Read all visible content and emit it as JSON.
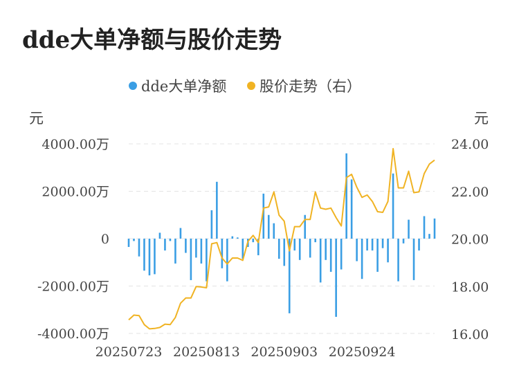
{
  "page_title": "dde大单净额与股价走势",
  "chart_data": {
    "type": "bar+line",
    "title": "dde大单净额与股价走势",
    "left_unit": "元",
    "right_unit": "元",
    "legend": [
      {
        "name": "dde大单净额",
        "color": "#3a9ee4"
      },
      {
        "name": "股价走势（右）",
        "color": "#f0b323"
      }
    ],
    "y_left": {
      "min": -4000,
      "max": 4000,
      "ticks": [
        {
          "value": 4000,
          "label": "4000.00万"
        },
        {
          "value": 2000,
          "label": "2000.00万"
        },
        {
          "value": 0,
          "label": "0"
        },
        {
          "value": -2000,
          "label": "-2000.00万"
        },
        {
          "value": -4000,
          "label": "-4000.00万"
        }
      ]
    },
    "y_right": {
      "min": 16,
      "max": 24,
      "ticks": [
        {
          "value": 24,
          "label": "24.00"
        },
        {
          "value": 22,
          "label": "22.00"
        },
        {
          "value": 20,
          "label": "20.00"
        },
        {
          "value": 18,
          "label": "18.00"
        },
        {
          "value": 16,
          "label": "16.00"
        }
      ]
    },
    "x_tick_labels": [
      {
        "index": 0,
        "label": "20250723"
      },
      {
        "index": 15,
        "label": "20250813"
      },
      {
        "index": 30,
        "label": "20250903"
      },
      {
        "index": 45,
        "label": "20250924"
      }
    ],
    "bar_color": "#3a9ee4",
    "line_color": "#f0b323",
    "series": [
      {
        "name": "dde大单净额",
        "unit": "万元",
        "values": [
          -350,
          -100,
          -750,
          -1350,
          -1550,
          -1500,
          250,
          -500,
          -100,
          -1050,
          450,
          -600,
          -1750,
          -800,
          -1050,
          -1800,
          1200,
          2400,
          -1250,
          -1800,
          100,
          50,
          -850,
          -350,
          -150,
          -700,
          1900,
          1000,
          650,
          -850,
          -1150,
          -3150,
          -500,
          -900,
          1000,
          -800,
          -150,
          -1850,
          -900,
          -1400,
          -3300,
          -1300,
          3600,
          2500,
          -950,
          -1700,
          -500,
          -500,
          -1400,
          -400,
          -1000,
          2750,
          -1800,
          -200,
          800,
          -1750,
          -500,
          950,
          200,
          850
        ]
      },
      {
        "name": "股价走势（右）",
        "unit": "元",
        "values": [
          16.6,
          16.8,
          16.78,
          16.4,
          16.22,
          16.24,
          16.28,
          16.42,
          16.4,
          16.7,
          17.3,
          17.52,
          17.52,
          18.0,
          17.98,
          17.95,
          19.8,
          19.85,
          19.2,
          18.95,
          19.2,
          19.2,
          19.1,
          19.9,
          20.15,
          19.85,
          21.3,
          21.35,
          21.98,
          21.0,
          20.75,
          19.5,
          20.52,
          20.52,
          20.82,
          20.82,
          21.98,
          21.3,
          21.25,
          21.3,
          20.9,
          20.55,
          22.58,
          22.72,
          22.18,
          21.75,
          21.85,
          21.58,
          21.15,
          21.12,
          21.58,
          23.8,
          22.15,
          22.15,
          22.85,
          21.95,
          21.98,
          22.75,
          23.15,
          23.32
        ]
      }
    ]
  }
}
